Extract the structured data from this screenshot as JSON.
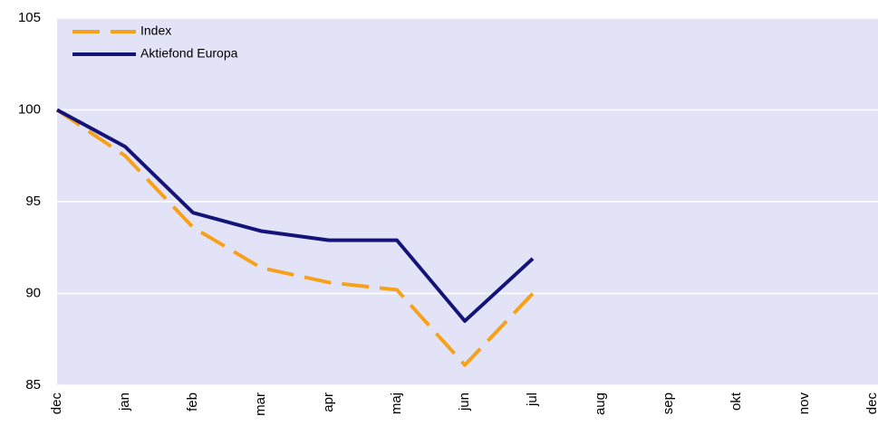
{
  "chart_data": {
    "type": "line",
    "categories": [
      "dec",
      "jan",
      "feb",
      "mar",
      "apr",
      "maj",
      "jun",
      "jul",
      "aug",
      "sep",
      "okt",
      "nov",
      "dec"
    ],
    "series": [
      {
        "name": "Index",
        "color": "#f7a11a",
        "dash": true,
        "values": [
          100,
          97.5,
          93.6,
          91.4,
          90.6,
          90.2,
          86.1,
          90.0,
          null,
          null,
          null,
          null,
          null
        ]
      },
      {
        "name": "Aktiefond Europa",
        "color": "#141478",
        "dash": false,
        "values": [
          100,
          98.0,
          94.4,
          93.4,
          92.9,
          92.9,
          88.5,
          91.9,
          null,
          null,
          null,
          null,
          null
        ]
      }
    ],
    "ylim": [
      85,
      105
    ],
    "yticks": [
      85,
      90,
      95,
      100,
      105
    ],
    "grid": true,
    "legend": "top-left"
  }
}
